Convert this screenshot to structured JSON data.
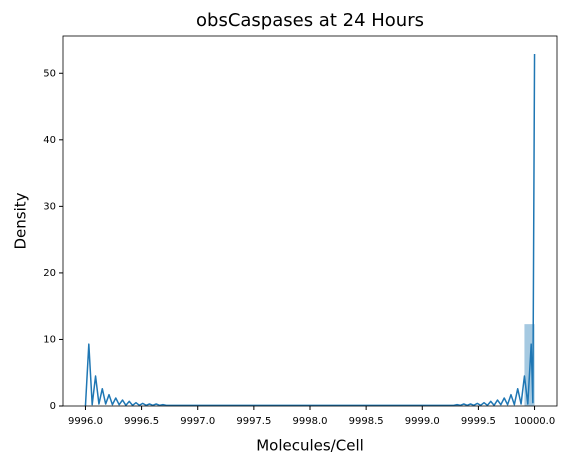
{
  "chart_data": {
    "type": "histogram",
    "title": "obsCaspases at 24 Hours",
    "x_label": "Molecules/Cell",
    "y_label": "Density",
    "color": "#1f77b4",
    "bins": [
      9999.91,
      10000.0
    ],
    "counts": [
      12.3
    ],
    "kde": {
      "x": [
        9996.0,
        9996.03,
        9996.06,
        9996.09,
        9996.12,
        9996.15,
        9996.18,
        9996.21,
        9996.24,
        9996.27,
        9996.3,
        9996.33,
        9996.36,
        9996.39,
        9996.42,
        9996.45,
        9996.48,
        9996.51,
        9996.54,
        9996.57,
        9996.6,
        9996.63,
        9996.66,
        9996.69,
        9996.72,
        9996.8,
        9999.2,
        9999.28,
        9999.31,
        9999.34,
        9999.37,
        9999.4,
        9999.43,
        9999.46,
        9999.49,
        9999.52,
        9999.55,
        9999.58,
        9999.61,
        9999.64,
        9999.67,
        9999.7,
        9999.73,
        9999.76,
        9999.79,
        9999.82,
        9999.85,
        9999.88,
        9999.91,
        9999.94,
        9999.97,
        9999.985,
        10000.0
      ],
      "values": [
        0,
        9.3,
        0.2,
        4.5,
        0.3,
        2.6,
        0.3,
        1.7,
        0.2,
        1.2,
        0.2,
        0.9,
        0.1,
        0.7,
        0.1,
        0.5,
        0.1,
        0.4,
        0.1,
        0.3,
        0.1,
        0.3,
        0.1,
        0.2,
        0.1,
        0.1,
        0.1,
        0.1,
        0.2,
        0.1,
        0.3,
        0.1,
        0.3,
        0.1,
        0.4,
        0.1,
        0.5,
        0.1,
        0.7,
        0.1,
        0.9,
        0.2,
        1.2,
        0.2,
        1.7,
        0.2,
        2.6,
        0.3,
        4.5,
        0.3,
        9.3,
        0.5,
        52.9
      ]
    },
    "xlim": [
      9995.8,
      10000.2
    ],
    "ylim": [
      0,
      55.6
    ],
    "xticks": [
      {
        "value": 9996.0,
        "label": "9996.0"
      },
      {
        "value": 9996.5,
        "label": "9996.5"
      },
      {
        "value": 9997.0,
        "label": "9997.0"
      },
      {
        "value": 9997.5,
        "label": "9997.5"
      },
      {
        "value": 9998.0,
        "label": "9998.0"
      },
      {
        "value": 9998.5,
        "label": "9998.5"
      },
      {
        "value": 9999.0,
        "label": "9999.0"
      },
      {
        "value": 9999.5,
        "label": "9999.5"
      },
      {
        "value": 10000.0,
        "label": "10000.0"
      }
    ],
    "yticks": [
      0,
      10,
      20,
      30,
      40,
      50
    ]
  }
}
